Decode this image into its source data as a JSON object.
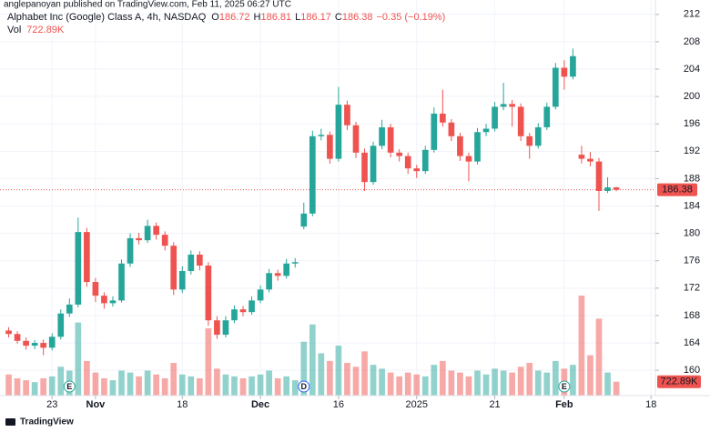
{
  "header": {
    "publisher": "anglepanoyan published on TradingView.com, Feb 11, 2025 06:27 UTC",
    "footer": "TradingView"
  },
  "chart_data": {
    "type": "candlestick",
    "title": "Alphabet Inc (Google) Class A, 4h, NASDAQ",
    "ohlc_letters": [
      "O",
      "H",
      "L",
      "C"
    ],
    "change": "−0.35 (−0.19%)",
    "up_color": "#26a69a",
    "down_color": "#ef5350",
    "candles": [
      [
        165.8,
        166.3,
        164.8,
        165.3
      ],
      [
        165.3,
        165.7,
        163.9,
        164.3
      ],
      [
        164.3,
        164.8,
        163.0,
        163.6
      ],
      [
        163.6,
        164.4,
        163.1,
        164.0
      ],
      [
        164.0,
        164.5,
        162.2,
        163.3
      ],
      [
        163.3,
        165.4,
        162.9,
        164.9
      ],
      [
        164.9,
        168.9,
        164.5,
        168.3
      ],
      [
        168.3,
        170.5,
        167.8,
        169.6
      ],
      [
        169.6,
        182.3,
        169.2,
        180.2
      ],
      [
        180.2,
        180.8,
        172.2,
        172.9
      ],
      [
        172.9,
        173.5,
        170.0,
        170.9
      ],
      [
        170.9,
        171.4,
        169.0,
        169.8
      ],
      [
        169.8,
        170.8,
        169.3,
        170.2
      ],
      [
        170.2,
        176.2,
        169.9,
        175.6
      ],
      [
        175.6,
        180.0,
        175.1,
        179.3
      ],
      [
        179.3,
        180.1,
        178.4,
        179.0
      ],
      [
        179.0,
        182.0,
        178.6,
        181.1
      ],
      [
        181.1,
        181.6,
        179.1,
        179.8
      ],
      [
        179.8,
        180.3,
        177.5,
        178.2
      ],
      [
        178.2,
        178.7,
        171.0,
        171.8
      ],
      [
        171.8,
        175.2,
        171.3,
        174.5
      ],
      [
        174.5,
        177.5,
        174.0,
        176.9
      ],
      [
        176.9,
        177.4,
        174.6,
        175.3
      ],
      [
        175.3,
        175.8,
        166.5,
        167.3
      ],
      [
        167.3,
        167.9,
        164.6,
        165.2
      ],
      [
        165.2,
        167.9,
        164.8,
        167.3
      ],
      [
        167.3,
        169.5,
        166.9,
        168.9
      ],
      [
        168.9,
        169.4,
        167.9,
        168.5
      ],
      [
        168.5,
        170.8,
        168.1,
        170.2
      ],
      [
        170.2,
        172.4,
        169.8,
        171.8
      ],
      [
        171.8,
        174.8,
        171.4,
        174.2
      ],
      [
        174.2,
        174.7,
        173.1,
        173.8
      ],
      [
        173.8,
        176.3,
        173.4,
        175.6
      ],
      [
        175.6,
        176.4,
        175.0,
        175.8
      ],
      [
        181.0,
        184.5,
        180.6,
        182.9
      ],
      [
        182.9,
        195.0,
        182.5,
        194.2
      ],
      [
        194.2,
        195.3,
        193.6,
        194.4
      ],
      [
        194.4,
        194.9,
        190.2,
        190.9
      ],
      [
        190.9,
        201.4,
        190.5,
        198.8
      ],
      [
        198.8,
        199.4,
        195.1,
        195.8
      ],
      [
        195.8,
        196.3,
        191.0,
        191.8
      ],
      [
        191.8,
        192.4,
        186.2,
        187.5
      ],
      [
        187.5,
        193.4,
        187.1,
        192.8
      ],
      [
        192.8,
        196.6,
        192.3,
        195.5
      ],
      [
        195.5,
        196.0,
        191.1,
        191.8
      ],
      [
        191.8,
        192.3,
        190.5,
        191.3
      ],
      [
        191.3,
        191.8,
        188.7,
        189.5
      ],
      [
        189.5,
        190.0,
        188.1,
        189.1
      ],
      [
        189.1,
        192.8,
        188.7,
        192.2
      ],
      [
        192.2,
        198.4,
        191.8,
        197.5
      ],
      [
        197.5,
        201.0,
        195.6,
        196.2
      ],
      [
        196.2,
        196.7,
        193.5,
        194.2
      ],
      [
        194.2,
        194.7,
        190.6,
        191.3
      ],
      [
        191.3,
        191.8,
        187.6,
        190.5
      ],
      [
        190.5,
        195.4,
        190.1,
        194.8
      ],
      [
        194.8,
        196.0,
        194.2,
        195.3
      ],
      [
        195.3,
        199.2,
        194.9,
        198.5
      ],
      [
        198.5,
        202.0,
        198.0,
        198.9
      ],
      [
        198.9,
        199.5,
        195.6,
        198.5
      ],
      [
        198.5,
        199.0,
        193.5,
        194.2
      ],
      [
        194.2,
        194.7,
        190.9,
        192.8
      ],
      [
        192.8,
        196.1,
        192.4,
        195.5
      ],
      [
        195.5,
        199.1,
        195.1,
        198.5
      ],
      [
        198.5,
        204.9,
        198.1,
        204.2
      ],
      [
        204.2,
        205.3,
        201.0,
        202.9
      ],
      [
        202.9,
        207.0,
        202.5,
        205.9
      ],
      [
        191.5,
        192.8,
        190.2,
        190.9
      ],
      [
        190.9,
        191.9,
        189.8,
        190.5
      ],
      [
        190.5,
        191.0,
        183.3,
        186.2
      ],
      [
        186.2,
        188.2,
        185.9,
        186.72
      ],
      [
        186.72,
        186.81,
        186.17,
        186.38
      ]
    ],
    "volume": {
      "name": "Vol",
      "last_label": "722.89K",
      "values": [
        1100,
        900,
        800,
        700,
        900,
        1000,
        1500,
        1300,
        3800,
        1800,
        1200,
        900,
        800,
        1300,
        1200,
        1000,
        1300,
        1100,
        900,
        1700,
        1100,
        1000,
        900,
        3500,
        1400,
        1100,
        1000,
        900,
        1000,
        1100,
        1300,
        900,
        1000,
        800,
        2800,
        3700,
        2200,
        1800,
        2600,
        1700,
        1500,
        2300,
        1600,
        1400,
        1200,
        1000,
        1200,
        1100,
        1000,
        1600,
        1800,
        1300,
        1200,
        1000,
        1300,
        1100,
        1400,
        1300,
        1200,
        1500,
        1700,
        1300,
        1200,
        1800,
        1400,
        1600,
        5200,
        2100,
        4000,
        1200,
        722.89
      ]
    },
    "ylim": [
      156.3,
      214.1
    ],
    "yticks": [
      160,
      164,
      168,
      172,
      176,
      180,
      184,
      188,
      192,
      196,
      200,
      204,
      208,
      212
    ],
    "xlim": [
      -1,
      74.5
    ],
    "xticks": [
      {
        "value": 5,
        "label": "23"
      },
      {
        "value": 10,
        "label": "Nov"
      },
      {
        "value": 20,
        "label": "18"
      },
      {
        "value": 29,
        "label": "Dec"
      },
      {
        "value": 38,
        "label": "16"
      },
      {
        "value": 47,
        "label": "2025"
      },
      {
        "value": 56,
        "label": "21"
      },
      {
        "value": 64,
        "label": "Feb"
      },
      {
        "value": 74,
        "label": "18"
      }
    ],
    "events": [
      {
        "value": 7,
        "label": "E"
      },
      {
        "value": 34,
        "label": "D"
      },
      {
        "value": 64,
        "label": "E"
      }
    ],
    "grid": true
  }
}
